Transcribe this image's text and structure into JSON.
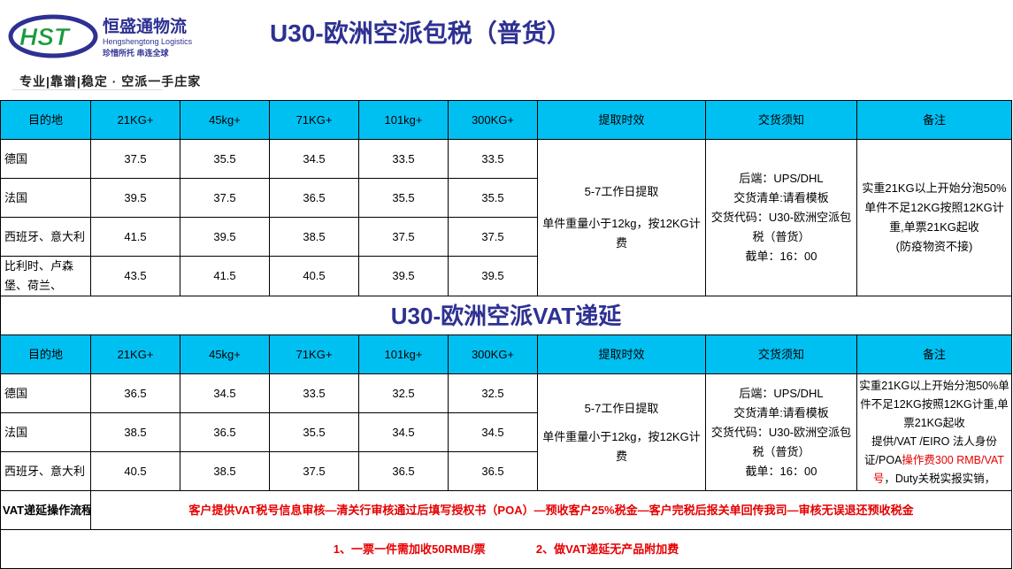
{
  "logo": {
    "mark": "HST",
    "cn": "恒盛通物流",
    "en": "Hengshengtong Logistics",
    "motto": "珍惜所托  串连全球"
  },
  "slogan": "专业|靠谱|稳定 · 空派一手庄家",
  "title1": "U30-欧洲空派包税（普货）",
  "title2": "U30-欧洲空派VAT递延",
  "headers": [
    "目的地",
    "21KG+",
    "45kg+",
    "71KG+",
    "101kg+",
    "300KG+",
    "提取时效",
    "交货须知",
    "备注"
  ],
  "table1": [
    {
      "dest": "德国",
      "prices": [
        "37.5",
        "35.5",
        "34.5",
        "33.5",
        "33.5"
      ]
    },
    {
      "dest": "法国",
      "prices": [
        "39.5",
        "37.5",
        "36.5",
        "35.5",
        "35.5"
      ]
    },
    {
      "dest": "西班牙、意大利",
      "prices": [
        "41.5",
        "39.5",
        "38.5",
        "37.5",
        "37.5"
      ]
    },
    {
      "dest": "比利时、卢森堡、荷兰、",
      "prices": [
        "43.5",
        "41.5",
        "40.5",
        "39.5",
        "39.5"
      ]
    }
  ],
  "table2": [
    {
      "dest": "德国",
      "prices": [
        "36.5",
        "34.5",
        "33.5",
        "32.5",
        "32.5"
      ]
    },
    {
      "dest": "法国",
      "prices": [
        "38.5",
        "36.5",
        "35.5",
        "34.5",
        "34.5"
      ]
    },
    {
      "dest": "西班牙、意大利",
      "prices": [
        "40.5",
        "38.5",
        "37.5",
        "36.5",
        "36.5"
      ]
    }
  ],
  "timing": {
    "line1": "5-7工作日提取",
    "line2": "单件重量小于12kg，按12KG计费"
  },
  "delivery": {
    "l1": "后端：UPS/DHL",
    "l2": "交货清单:请看模板",
    "l3": "交货代码：U30-欧洲空派包税（普货）",
    "l4": "截单：16：00"
  },
  "remark1": {
    "l1": "实重21KG以上开始分泡50%单件不足12KG按照12KG计重,单票21KG起收",
    "l2": "(防疫物资不接)"
  },
  "remark2": {
    "l1": "实重21KG以上开始分泡50%单件不足12KG按照12KG计重,单票21KG起收",
    "l2": "提供/VAT /EIRO 法人身份证/POA",
    "l3": "操作费300 RMB/VAT号",
    "l4": "，Duty关税实报实销，"
  },
  "flow": {
    "label": "VAT递延操作流程",
    "text": "客户提供VAT税号信息审核—清关行审核通过后填写授权书（POA）—预收客户25%税金—客户完税后报关单回传我司—审核无误退还预收税金"
  },
  "notes": {
    "n1": "1、一票一件需加收50RMB/票",
    "n2": "2、做VAT递延无产品附加费"
  },
  "colors": {
    "header": "#00c0f2",
    "title": "#2e3192",
    "red": "#e60000",
    "logo_green": "#1a9a3a"
  }
}
